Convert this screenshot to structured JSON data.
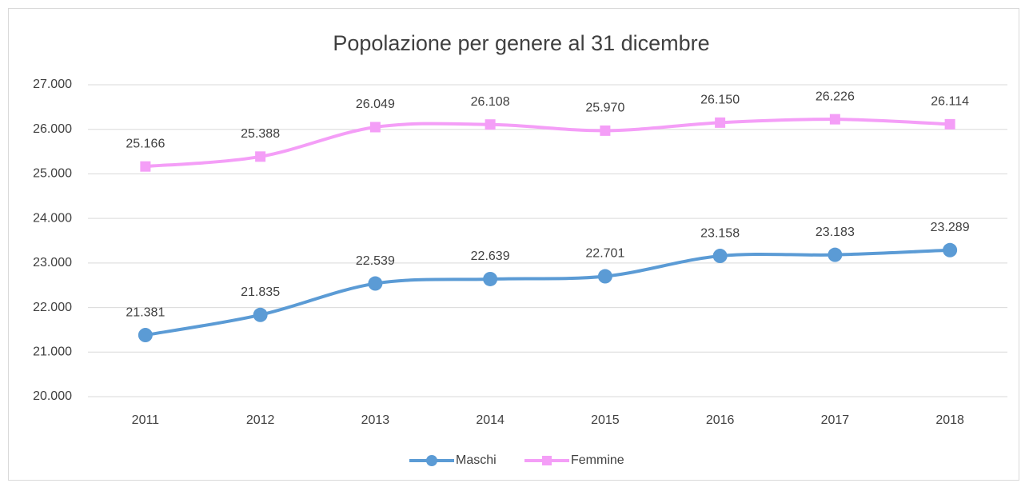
{
  "chart_data": {
    "type": "line",
    "title": "Popolazione per genere al 31 dicembre",
    "categories": [
      "2011",
      "2012",
      "2013",
      "2014",
      "2015",
      "2016",
      "2017",
      "2018"
    ],
    "series": [
      {
        "name": "Maschi",
        "color": "#5b9bd5",
        "marker": "circle",
        "values": [
          21381,
          21835,
          22539,
          22639,
          22701,
          23158,
          23183,
          23289
        ],
        "value_labels": [
          "21.381",
          "21.835",
          "22.539",
          "22.639",
          "22.701",
          "23.158",
          "23.183",
          "23.289"
        ]
      },
      {
        "name": "Femmine",
        "color": "#f49ef7",
        "marker": "square",
        "values": [
          25166,
          25388,
          26049,
          26108,
          25970,
          26150,
          26226,
          26114
        ],
        "value_labels": [
          "25.166",
          "25.388",
          "26.049",
          "26.108",
          "25.970",
          "26.150",
          "26.226",
          "26.114"
        ]
      }
    ],
    "ylim": [
      20000,
      27000
    ],
    "yticks": [
      {
        "value": 20000,
        "label": "20.000"
      },
      {
        "value": 21000,
        "label": "21.000"
      },
      {
        "value": 22000,
        "label": "22.000"
      },
      {
        "value": 23000,
        "label": "23.000"
      },
      {
        "value": 24000,
        "label": "24.000"
      },
      {
        "value": 25000,
        "label": "25.000"
      },
      {
        "value": 26000,
        "label": "26.000"
      },
      {
        "value": 27000,
        "label": "27.000"
      }
    ],
    "grid": true,
    "smooth": true,
    "legend": "bottom"
  }
}
